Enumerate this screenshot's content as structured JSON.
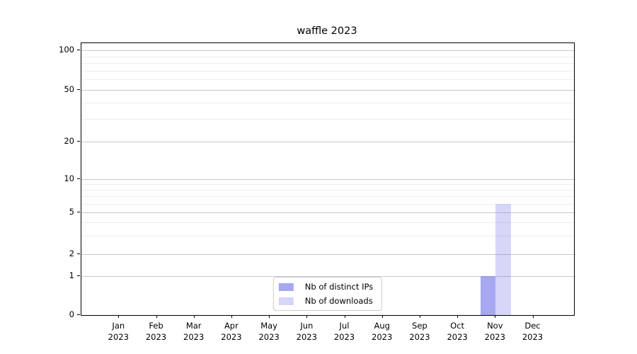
{
  "chart_data": {
    "type": "bar",
    "title": "waffle 2023",
    "xlabel": "",
    "ylabel": "",
    "categories": [
      "Jan",
      "Feb",
      "Mar",
      "Apr",
      "May",
      "Jun",
      "Jul",
      "Aug",
      "Sep",
      "Oct",
      "Nov",
      "Dec"
    ],
    "category_year": "2023",
    "series": [
      {
        "name": "Nb of distinct IPs",
        "color": "rgba(120,120,235,0.65)",
        "values": [
          0,
          0,
          0,
          0,
          0,
          0,
          0,
          0,
          0,
          0,
          1,
          0
        ]
      },
      {
        "name": "Nb of downloads",
        "color": "rgba(120,120,235,0.30)",
        "values": [
          0,
          0,
          0,
          0,
          0,
          0,
          0,
          0,
          0,
          0,
          6,
          0
        ]
      }
    ],
    "y_axis": {
      "scale": "log-like",
      "range": [
        0,
        100
      ],
      "major_ticks": [
        100,
        50,
        20,
        10,
        5,
        2,
        1,
        0
      ],
      "minor_ticks": [
        90,
        80,
        70,
        60,
        40,
        30,
        9,
        8,
        7,
        6,
        4,
        3
      ]
    },
    "grid": "on",
    "legend": {
      "position": "lower center",
      "entries": [
        "Nb of distinct IPs",
        "Nb of downloads"
      ]
    },
    "colors": {
      "bar_distinct_ips": "#a9a9f1",
      "bar_downloads": "#d8d8f8",
      "major_grid": "#c9c9c9",
      "minor_grid": "#ededed",
      "axis": "#000000",
      "text": "#000000"
    }
  }
}
